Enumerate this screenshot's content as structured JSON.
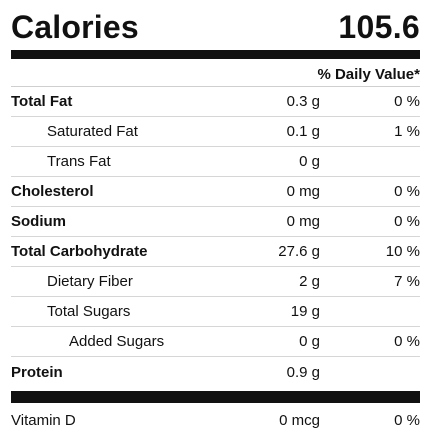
{
  "calories": {
    "label": "Calories",
    "value": "105.6"
  },
  "daily_value_header": "% Daily Value*",
  "nutrients": [
    {
      "name": "Total Fat",
      "amount": "0.3 g",
      "dv": "0 %",
      "style": "bold"
    },
    {
      "name": "Saturated Fat",
      "amount": "0.1 g",
      "dv": "1 %",
      "style": "indent1"
    },
    {
      "name": "Trans Fat",
      "amount": "0 g",
      "dv": "",
      "style": "indent1"
    },
    {
      "name": "Cholesterol",
      "amount": "0 mg",
      "dv": "0 %",
      "style": "bold"
    },
    {
      "name": "Sodium",
      "amount": "0 mg",
      "dv": "0 %",
      "style": "bold"
    },
    {
      "name": "Total Carbohydrate",
      "amount": "27.6 g",
      "dv": "10 %",
      "style": "bold"
    },
    {
      "name": "Dietary Fiber",
      "amount": "2 g",
      "dv": "7 %",
      "style": "indent1"
    },
    {
      "name": "Total Sugars",
      "amount": "19 g",
      "dv": "",
      "style": "indent1"
    },
    {
      "name": "Added Sugars",
      "amount": "0 g",
      "dv": "0 %",
      "style": "indent2"
    },
    {
      "name": "Protein",
      "amount": "0.9 g",
      "dv": "",
      "style": "bold"
    }
  ],
  "vitamins": [
    {
      "name": "Vitamin D",
      "amount": "0 mcg",
      "dv": "0 %"
    }
  ]
}
